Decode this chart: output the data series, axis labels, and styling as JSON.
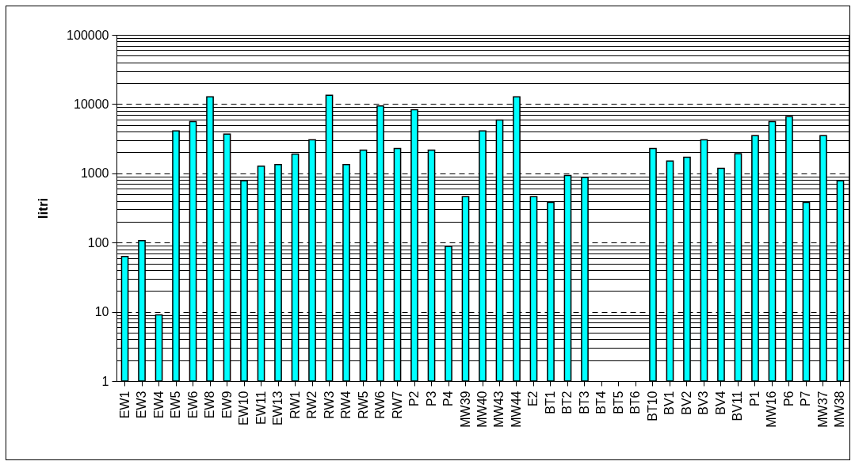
{
  "chart_data": {
    "type": "bar",
    "ylabel": "litri",
    "categories": [
      "EW1",
      "EW3",
      "EW4",
      "EW5",
      "EW6",
      "EW8",
      "EW9",
      "EW10",
      "EW11",
      "EW13",
      "RW1",
      "RW2",
      "RW3",
      "RW4",
      "RW5",
      "RW6",
      "RW7",
      "P2",
      "P3",
      "P4",
      "MW39",
      "MW40",
      "MW43",
      "MW44",
      "E2",
      "BT1",
      "BT2",
      "BT3",
      "BT4",
      "BT5",
      "BT6",
      "BT10",
      "BV1",
      "BV2",
      "BV3",
      "BV4",
      "BV11",
      "P1",
      "MW16",
      "P6",
      "P7",
      "MW37",
      "MW38"
    ],
    "values": [
      63,
      107,
      9,
      4100,
      5600,
      12700,
      3700,
      780,
      1270,
      1340,
      1900,
      3050,
      13400,
      1340,
      2170,
      9400,
      2280,
      8300,
      2170,
      88,
      460,
      4100,
      5900,
      12700,
      460,
      380,
      930,
      870,
      null,
      null,
      null,
      2280,
      1510,
      1710,
      3050,
      1180,
      1920,
      3500,
      5600,
      6600,
      380,
      3500,
      780
    ],
    "color": "#00ffff",
    "log": true,
    "ylim": [
      1,
      100000
    ],
    "yticks": [
      1,
      10,
      100,
      1000,
      10000,
      100000
    ],
    "grid": "y"
  }
}
